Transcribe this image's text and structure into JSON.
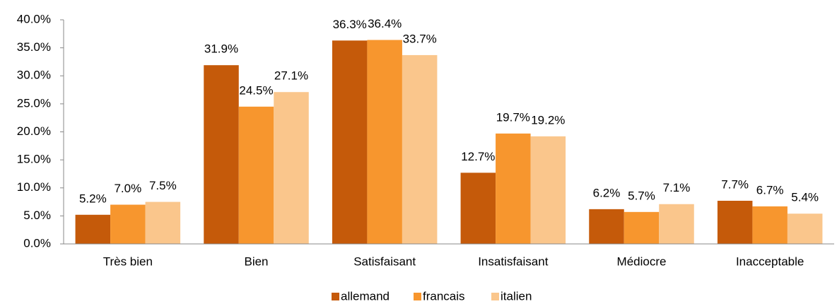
{
  "chart_data": {
    "type": "bar",
    "categories": [
      "Très bien",
      "Bien",
      "Satisfaisant",
      "Insatisfaisant",
      "Médiocre",
      "Inacceptable"
    ],
    "series": [
      {
        "name": "allemand",
        "color": "#c55a0a",
        "values": [
          5.2,
          31.9,
          36.3,
          12.7,
          6.2,
          7.7
        ],
        "value_labels": [
          "5.2%",
          "31.9%",
          "36.3%",
          "12.7%",
          "6.2%",
          "7.7%"
        ]
      },
      {
        "name": "francais",
        "color": "#f7962e",
        "values": [
          7.0,
          24.5,
          36.4,
          19.7,
          5.7,
          6.7
        ],
        "value_labels": [
          "7.0%",
          "24.5%",
          "36.4%",
          "19.7%",
          "5.7%",
          "6.7%"
        ]
      },
      {
        "name": "italien",
        "color": "#fac68c",
        "values": [
          7.5,
          27.1,
          33.7,
          19.2,
          7.1,
          5.4
        ],
        "value_labels": [
          "7.5%",
          "27.1%",
          "33.7%",
          "19.2%",
          "7.1%",
          "5.4%"
        ]
      }
    ],
    "ylim": [
      0,
      40
    ],
    "yticks": [
      {
        "value": 0,
        "label": "0.0%"
      },
      {
        "value": 5,
        "label": "5.0%"
      },
      {
        "value": 10,
        "label": "10.0%"
      },
      {
        "value": 15,
        "label": "15.0%"
      },
      {
        "value": 20,
        "label": "20.0%"
      },
      {
        "value": 25,
        "label": "25.0%"
      },
      {
        "value": 30,
        "label": "30.0%"
      },
      {
        "value": 35,
        "label": "35.0%"
      },
      {
        "value": 40,
        "label": "40.0%"
      }
    ],
    "grid": false,
    "legend": "bottom"
  }
}
